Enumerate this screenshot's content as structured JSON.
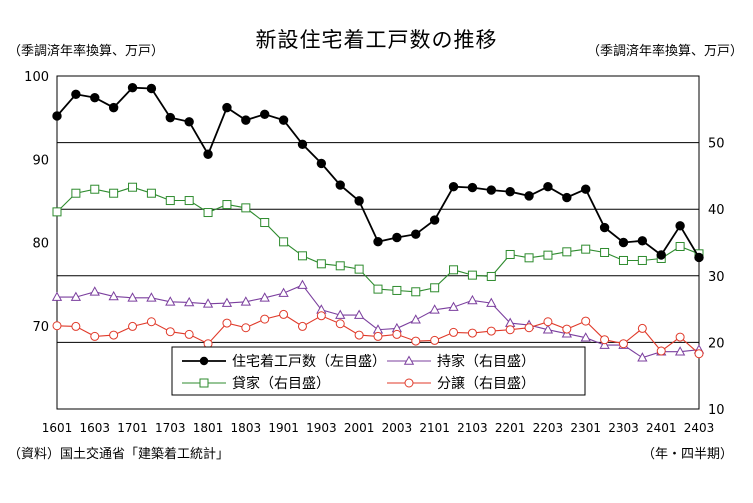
{
  "chart_data": {
    "type": "line",
    "title": "新設住宅着工戸数の推移",
    "left_unit": "（季調済年率換算、万戸）",
    "right_unit": "（季調済年率換算、万戸）",
    "source": "（資料）国土交通省「建築着工統計」",
    "period_label": "（年・四半期）",
    "x": [
      "1601",
      "1602",
      "1603",
      "1604",
      "1701",
      "1702",
      "1703",
      "1704",
      "1801",
      "1802",
      "1803",
      "1804",
      "1901",
      "1902",
      "1903",
      "1904",
      "2001",
      "2002",
      "2003",
      "2004",
      "2101",
      "2102",
      "2103",
      "2104",
      "2201",
      "2202",
      "2203",
      "2204",
      "2301",
      "2302",
      "2303",
      "2304",
      "2401",
      "2402",
      "2403"
    ],
    "x_tick_labels": [
      "1601",
      "1603",
      "1701",
      "1703",
      "1801",
      "1803",
      "1901",
      "1903",
      "2001",
      "2003",
      "2101",
      "2103",
      "2201",
      "2203",
      "2301",
      "2303",
      "2401",
      "2403"
    ],
    "y_left": {
      "range": [
        60,
        100
      ],
      "ticks": [
        "100",
        "90",
        "80",
        "70"
      ]
    },
    "y_right": {
      "range": [
        10,
        60
      ],
      "ticks": [
        "50",
        "40",
        "30",
        "20",
        "10"
      ]
    },
    "grid": true,
    "legend_position": "bottom-center",
    "series": [
      {
        "name": "住宅着工戸数（左目盛）",
        "axis": "left",
        "marker": "filled-circle",
        "color": "#000000",
        "values": [
          95.2,
          97.8,
          97.4,
          96.2,
          98.6,
          98.5,
          95.0,
          94.5,
          90.6,
          96.2,
          94.7,
          95.4,
          94.7,
          91.8,
          89.5,
          86.9,
          85.0,
          80.1,
          80.6,
          81.0,
          82.7,
          86.7,
          86.6,
          86.3,
          86.1,
          85.6,
          86.7,
          85.4,
          86.4,
          81.8,
          80.0,
          80.2,
          78.5,
          82.0,
          78.2
        ]
      },
      {
        "name": "貸家（右目盛）",
        "axis": "right",
        "marker": "open-square",
        "color": "#2e8b2e",
        "values": [
          39.6,
          42.4,
          43.0,
          42.4,
          43.3,
          42.4,
          41.3,
          41.3,
          39.5,
          40.7,
          40.2,
          38.0,
          35.1,
          33.0,
          31.8,
          31.5,
          31.0,
          28.0,
          27.8,
          27.6,
          28.2,
          30.9,
          30.1,
          29.9,
          33.2,
          32.7,
          33.1,
          33.6,
          34.0,
          33.5,
          32.3,
          32.3,
          32.6,
          34.4,
          33.3
        ]
      },
      {
        "name": "持家（右目盛）",
        "axis": "right",
        "marker": "open-triangle",
        "color": "#7b3f9e",
        "values": [
          26.8,
          26.8,
          27.6,
          26.9,
          26.7,
          26.7,
          26.1,
          26.0,
          25.8,
          25.9,
          26.1,
          26.7,
          27.4,
          28.6,
          24.9,
          24.1,
          24.1,
          21.9,
          22.1,
          23.4,
          24.9,
          25.3,
          26.3,
          25.9,
          22.9,
          22.6,
          21.9,
          21.3,
          20.7,
          19.6,
          19.6,
          17.7,
          18.6,
          18.6,
          18.9
        ]
      },
      {
        "name": "分譲（右目盛）",
        "axis": "right",
        "marker": "open-circle",
        "color": "#e03a2a",
        "values": [
          22.5,
          22.4,
          20.9,
          21.1,
          22.4,
          23.1,
          21.6,
          21.2,
          19.8,
          22.9,
          22.2,
          23.5,
          24.2,
          22.4,
          24.0,
          22.8,
          21.1,
          20.9,
          21.2,
          20.2,
          20.3,
          21.5,
          21.4,
          21.7,
          21.9,
          22.2,
          23.1,
          22.0,
          23.2,
          20.4,
          19.8,
          22.1,
          18.7,
          20.8,
          18.3
        ]
      }
    ]
  }
}
